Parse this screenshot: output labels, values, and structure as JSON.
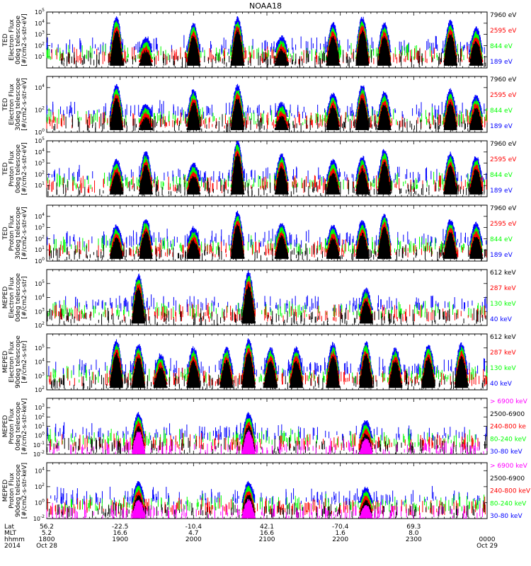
{
  "title": "NOAA18",
  "colors": {
    "black": "#000000",
    "red": "#ff0000",
    "green": "#00ff00",
    "blue": "#0000ff",
    "magenta": "#ff00ff"
  },
  "footer": {
    "row_labels": [
      "Lat",
      "MLT",
      "hhmm",
      "2014"
    ],
    "columns": [
      {
        "lat": "56.2",
        "mlt": "5.2",
        "hhmm": "1800",
        "date": "Oct 28"
      },
      {
        "lat": "-22.5",
        "mlt": "16.6",
        "hhmm": "1900",
        "date": ""
      },
      {
        "lat": "-10.4",
        "mlt": "4.7",
        "hhmm": "2000",
        "date": ""
      },
      {
        "lat": "42.1",
        "mlt": "16.6",
        "hhmm": "2100",
        "date": ""
      },
      {
        "lat": "-70.4",
        "mlt": "1.6",
        "hhmm": "2200",
        "date": ""
      },
      {
        "lat": "69.3",
        "mlt": "8.0",
        "hhmm": "2300",
        "date": ""
      },
      {
        "lat": "",
        "mlt": "",
        "hhmm": "0000",
        "date": "Oct 29"
      }
    ]
  },
  "chart_data": [
    {
      "type": "line",
      "ylabel": [
        "TED",
        "Electron Flux",
        "0deg telescope",
        "[#/cm2-s-str-eV]"
      ],
      "yticks": [
        "10^1",
        "10^2",
        "10^3",
        "10^4",
        "10^5"
      ],
      "ylim": [
        1,
        100000
      ],
      "x_time_hours": [
        18,
        24
      ],
      "legend": [
        {
          "label": "7960 eV",
          "color": "black"
        },
        {
          "label": "2595 eV",
          "color": "red"
        },
        {
          "label": "844 eV",
          "color": "green"
        },
        {
          "label": "189 eV",
          "color": "blue"
        }
      ],
      "events_utc_hours": [
        18.95,
        19.35,
        20.0,
        20.6,
        21.2,
        21.9,
        22.3,
        22.6,
        23.5,
        23.85
      ],
      "peak_log10_flux": [
        4.5,
        2.7,
        4.0,
        4.5,
        2.8,
        4.0,
        4.5,
        4.0,
        4.2,
        3.6
      ]
    },
    {
      "type": "line",
      "ylabel": [
        "TED",
        "Electron Flux",
        "30deg telescope",
        "[#/cm2-s-str-eV]"
      ],
      "yticks": [
        "10^0",
        "10^2",
        "10^4"
      ],
      "ylim": [
        1,
        100000
      ],
      "x_time_hours": [
        18,
        24
      ],
      "legend": [
        {
          "label": "7960 eV",
          "color": "black"
        },
        {
          "label": "2595 eV",
          "color": "red"
        },
        {
          "label": "844 eV",
          "color": "green"
        },
        {
          "label": "189 eV",
          "color": "blue"
        }
      ],
      "events_utc_hours": [
        18.95,
        19.35,
        20.0,
        20.6,
        21.2,
        21.9,
        22.3,
        22.6,
        23.5,
        23.85
      ],
      "peak_log10_flux": [
        4.2,
        2.5,
        3.8,
        4.2,
        2.6,
        3.5,
        4.2,
        3.6,
        3.8,
        3.3
      ]
    },
    {
      "type": "line",
      "ylabel": [
        "TED",
        "Proton Flux",
        "0deg telescope",
        "[#/cm2-s-str-eV]"
      ],
      "yticks": [
        "10^1",
        "10^2",
        "10^3",
        "10^4",
        "10^5"
      ],
      "ylim": [
        1,
        100000
      ],
      "x_time_hours": [
        18,
        24
      ],
      "legend": [
        {
          "label": "7960 eV",
          "color": "black"
        },
        {
          "label": "2595 eV",
          "color": "red"
        },
        {
          "label": "844 eV",
          "color": "green"
        },
        {
          "label": "189 eV",
          "color": "blue"
        }
      ],
      "events_utc_hours": [
        18.95,
        19.35,
        20.0,
        20.6,
        21.2,
        21.9,
        22.3,
        22.6,
        23.5,
        23.85
      ],
      "peak_log10_flux": [
        3.3,
        4.0,
        3.0,
        5.0,
        3.8,
        3.3,
        3.6,
        4.2,
        3.9,
        3.6
      ]
    },
    {
      "type": "line",
      "ylabel": [
        "TED",
        "Proton Flux",
        "30deg telescope",
        "[#/cm2-s-str-eV]"
      ],
      "yticks": [
        "10^0",
        "10^1",
        "10^2",
        "10^3",
        "10^4"
      ],
      "ylim": [
        1,
        100000
      ],
      "x_time_hours": [
        18,
        24
      ],
      "legend": [
        {
          "label": "7960 eV",
          "color": "black"
        },
        {
          "label": "2595 eV",
          "color": "red"
        },
        {
          "label": "844 eV",
          "color": "green"
        },
        {
          "label": "189 eV",
          "color": "blue"
        }
      ],
      "events_utc_hours": [
        18.95,
        19.35,
        20.0,
        20.6,
        21.2,
        21.9,
        22.3,
        22.6,
        23.5,
        23.85
      ],
      "peak_log10_flux": [
        3.2,
        3.8,
        3.0,
        4.4,
        3.4,
        3.2,
        3.6,
        4.2,
        3.7,
        3.4
      ]
    },
    {
      "type": "line",
      "ylabel": [
        "MEPED",
        "Electron Flux",
        "0deg telescope",
        "[#/cm2-s-str]"
      ],
      "yticks": [
        "10^2",
        "10^3",
        "10^4",
        "10^5"
      ],
      "ylim": [
        100,
        1000000
      ],
      "x_time_hours": [
        18,
        24
      ],
      "legend": [
        {
          "label": "612 keV",
          "color": "black"
        },
        {
          "label": "287 keV",
          "color": "red"
        },
        {
          "label": "130 keV",
          "color": "green"
        },
        {
          "label": "40 keV",
          "color": "blue"
        }
      ],
      "events_utc_hours": [
        19.25,
        20.75,
        22.35
      ],
      "peak_log10_flux": [
        5.6,
        5.8,
        4.6
      ]
    },
    {
      "type": "line",
      "ylabel": [
        "MEPED",
        "Electron Flux",
        "90deg telescope",
        "[#/cm2-s-str]"
      ],
      "yticks": [
        "10^2",
        "10^3",
        "10^4",
        "10^5"
      ],
      "ylim": [
        100,
        1000000
      ],
      "x_time_hours": [
        18,
        24
      ],
      "legend": [
        {
          "label": "612 keV",
          "color": "black"
        },
        {
          "label": "287 keV",
          "color": "red"
        },
        {
          "label": "130 keV",
          "color": "green"
        },
        {
          "label": "40 keV",
          "color": "blue"
        }
      ],
      "events_utc_hours": [
        18.95,
        19.25,
        19.55,
        20.0,
        20.45,
        20.75,
        21.05,
        21.4,
        21.9,
        22.35,
        22.75,
        23.2,
        23.65
      ],
      "peak_log10_flux": [
        5.5,
        5.2,
        4.5,
        5.0,
        5.0,
        5.6,
        5.0,
        5.0,
        5.3,
        5.4,
        5.0,
        5.2,
        5.3
      ]
    },
    {
      "type": "line",
      "ylabel": [
        "MEPED",
        "Proton Flux",
        "0deg telescope",
        "[#/cm2-s-str-keV]"
      ],
      "yticks": [
        "10^-2",
        "10^-1",
        "10^0",
        "10^1",
        "10^2",
        "10^3"
      ],
      "ylim": [
        0.01,
        10000
      ],
      "x_time_hours": [
        18,
        24
      ],
      "legend": [
        {
          "label": "> 6900 keV",
          "color": "magenta"
        },
        {
          "label": "2500-6900",
          "color": "black"
        },
        {
          "label": "240-800 ke",
          "color": "red"
        },
        {
          "label": "80-240 keV",
          "color": "green"
        },
        {
          "label": "30-80 keV",
          "color": "blue"
        }
      ],
      "events_utc_hours": [
        19.25,
        20.75,
        22.35
      ],
      "peak_log10_flux": [
        2.4,
        2.4,
        1.6
      ]
    },
    {
      "type": "line",
      "ylabel": [
        "MEPED",
        "Proton Flux",
        "90deg telescope",
        "[#/cm2-s-str-keV]"
      ],
      "yticks": [
        "10^-2",
        "10^0",
        "10^2",
        "10^4"
      ],
      "ylim": [
        0.01,
        100000
      ],
      "x_time_hours": [
        18,
        24
      ],
      "legend": [
        {
          "label": "> 6900 keV",
          "color": "magenta"
        },
        {
          "label": "2500-6900",
          "color": "black"
        },
        {
          "label": "240-800 keV",
          "color": "red"
        },
        {
          "label": "80-240 keV",
          "color": "green"
        },
        {
          "label": "30-80 keV",
          "color": "blue"
        }
      ],
      "events_utc_hours": [
        19.25,
        20.75,
        22.35
      ],
      "peak_log10_flux": [
        2.6,
        2.6,
        1.9
      ]
    }
  ]
}
